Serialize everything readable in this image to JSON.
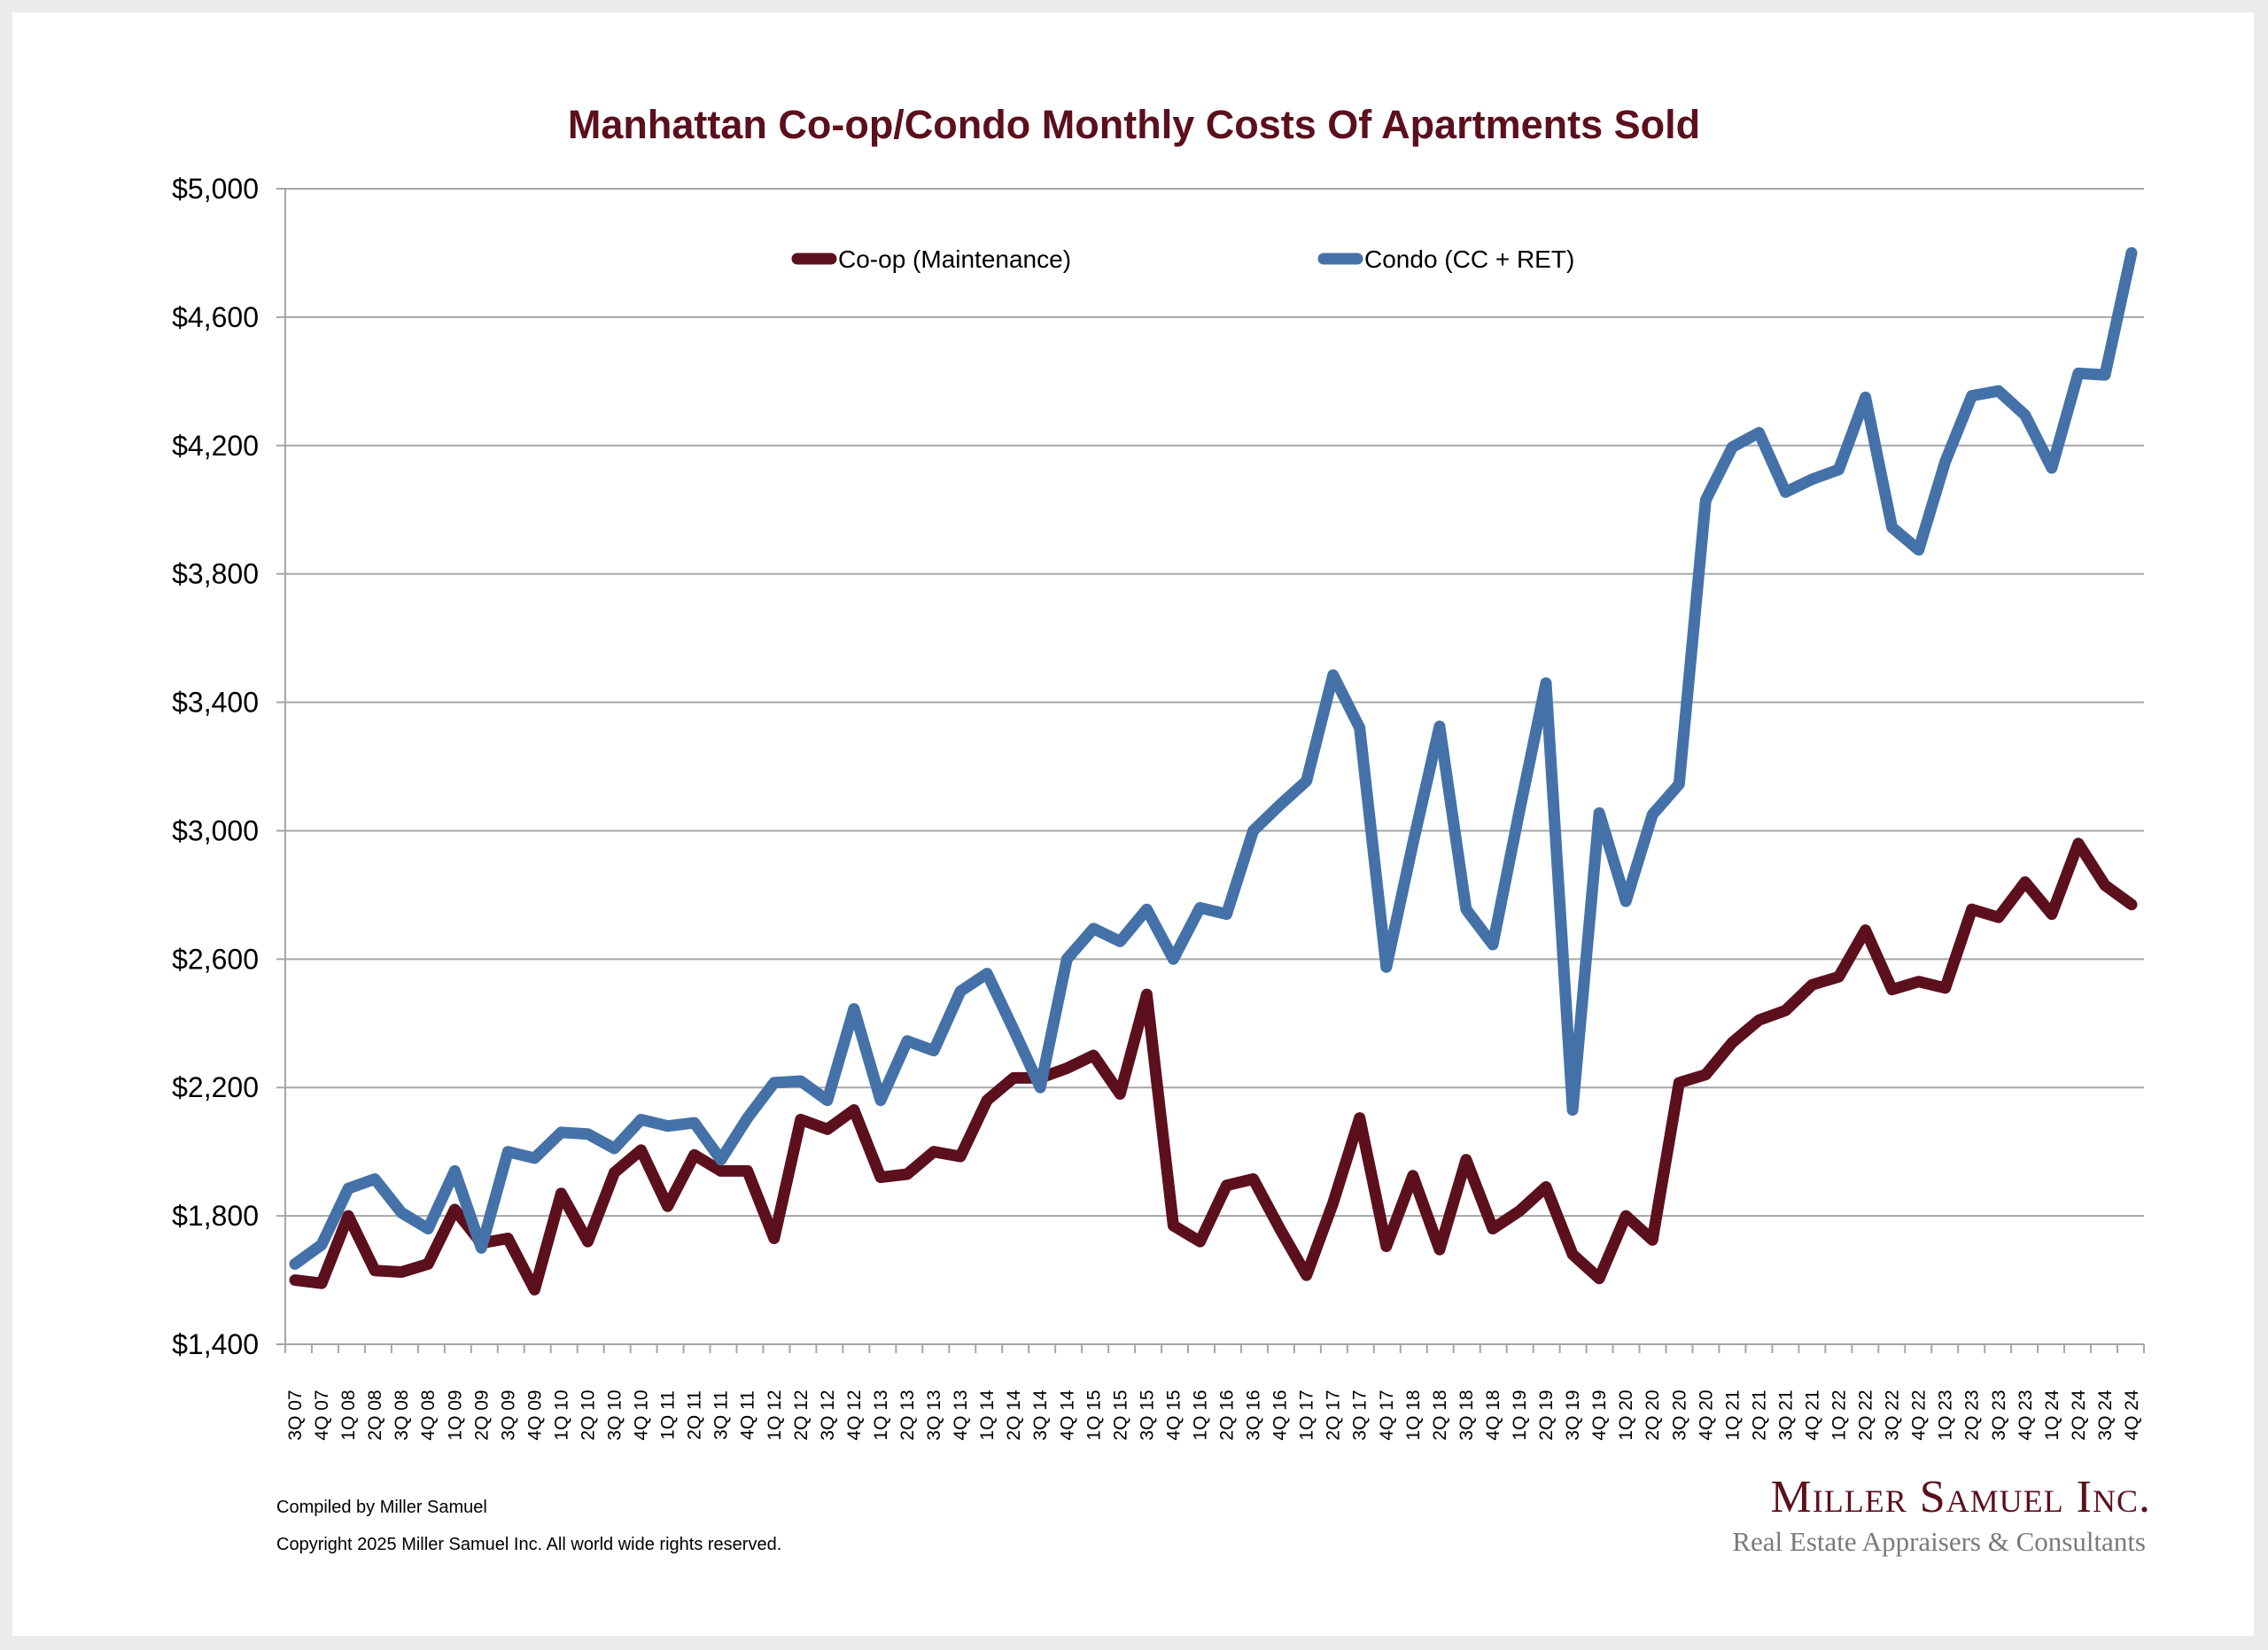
{
  "chart_data": {
    "type": "line",
    "title": "Manhattan Co-op/Condo Monthly Costs Of Apartments Sold",
    "xlabel": "",
    "ylabel": "",
    "ylim": [
      1400,
      5000
    ],
    "yticks": [
      1400,
      1800,
      2200,
      2600,
      3000,
      3400,
      3800,
      4200,
      4600,
      5000
    ],
    "ytick_labels": [
      "$1,400",
      "$1,800",
      "$2,200",
      "$2,600",
      "$3,000",
      "$3,400",
      "$3,800",
      "$4,200",
      "$4,600",
      "$5,000"
    ],
    "grid": true,
    "legend_position": "top-center",
    "categories": [
      "3Q 07",
      "4Q 07",
      "1Q 08",
      "2Q 08",
      "3Q 08",
      "4Q 08",
      "1Q 09",
      "2Q 09",
      "3Q 09",
      "4Q 09",
      "1Q 10",
      "2Q 10",
      "3Q 10",
      "4Q 10",
      "1Q 11",
      "2Q 11",
      "3Q 11",
      "4Q 11",
      "1Q 12",
      "2Q 12",
      "3Q 12",
      "4Q 12",
      "1Q 13",
      "2Q 13",
      "3Q 13",
      "4Q 13",
      "1Q 14",
      "2Q 14",
      "3Q 14",
      "4Q 14",
      "1Q 15",
      "2Q 15",
      "3Q 15",
      "4Q 15",
      "1Q 16",
      "2Q 16",
      "3Q 16",
      "4Q 16",
      "1Q 17",
      "2Q 17",
      "3Q 17",
      "4Q 17",
      "1Q 18",
      "2Q 18",
      "3Q 18",
      "4Q 18",
      "1Q 19",
      "2Q 19",
      "3Q 19",
      "4Q 19",
      "1Q 20",
      "2Q 20",
      "3Q 20",
      "4Q 20",
      "1Q 21",
      "2Q 21",
      "3Q 21",
      "4Q 21",
      "1Q 22",
      "2Q 22",
      "3Q 22",
      "4Q 22",
      "1Q 23",
      "2Q 23",
      "3Q 23",
      "4Q 23",
      "1Q 24",
      "2Q 24",
      "3Q 24",
      "4Q 24"
    ],
    "series": [
      {
        "name": "Co-op (Maintenance)",
        "color": "#5c0f1c",
        "values": [
          1600,
          1590,
          1800,
          1630,
          1625,
          1650,
          1820,
          1715,
          1730,
          1570,
          1870,
          1720,
          1935,
          2005,
          1830,
          1990,
          1940,
          1940,
          1730,
          2100,
          2070,
          2130,
          1920,
          1930,
          2000,
          1985,
          2160,
          2230,
          2230,
          2260,
          2300,
          2180,
          2490,
          1770,
          1720,
          1895,
          1915,
          1760,
          1615,
          1840,
          2105,
          1705,
          1925,
          1695,
          1975,
          1760,
          1815,
          1890,
          1680,
          1605,
          1800,
          1725,
          2215,
          2240,
          2340,
          2410,
          2440,
          2520,
          2545,
          2690,
          2505,
          2530,
          2510,
          2755,
          2730,
          2840,
          2740,
          2960,
          2830,
          2770
        ]
      },
      {
        "name": "Condo (CC + RET)",
        "color": "#4472a8",
        "values": [
          1650,
          1710,
          1885,
          1915,
          1810,
          1760,
          1940,
          1700,
          2000,
          1980,
          2060,
          2055,
          2010,
          2100,
          2080,
          2090,
          1975,
          2105,
          2215,
          2220,
          2160,
          2445,
          2160,
          2345,
          2315,
          2500,
          2555,
          2380,
          2200,
          2600,
          2695,
          2655,
          2755,
          2600,
          2760,
          2740,
          3000,
          3080,
          3155,
          3485,
          3320,
          2575,
          2960,
          3325,
          2755,
          2645,
          3060,
          3460,
          2130,
          3055,
          2780,
          3050,
          3145,
          4030,
          4195,
          4240,
          4055,
          4095,
          4125,
          4350,
          3945,
          3875,
          4150,
          4355,
          4370,
          4295,
          4130,
          4425,
          4420,
          4800
        ]
      }
    ]
  },
  "footer": {
    "compiled": "Compiled by Miller Samuel",
    "copyright": "Copyright 2025 Miller Samuel Inc.  All world wide rights reserved."
  },
  "logo": {
    "name": "Miller Samuel Inc.",
    "tagline": "Real Estate Appraisers & Consultants"
  }
}
